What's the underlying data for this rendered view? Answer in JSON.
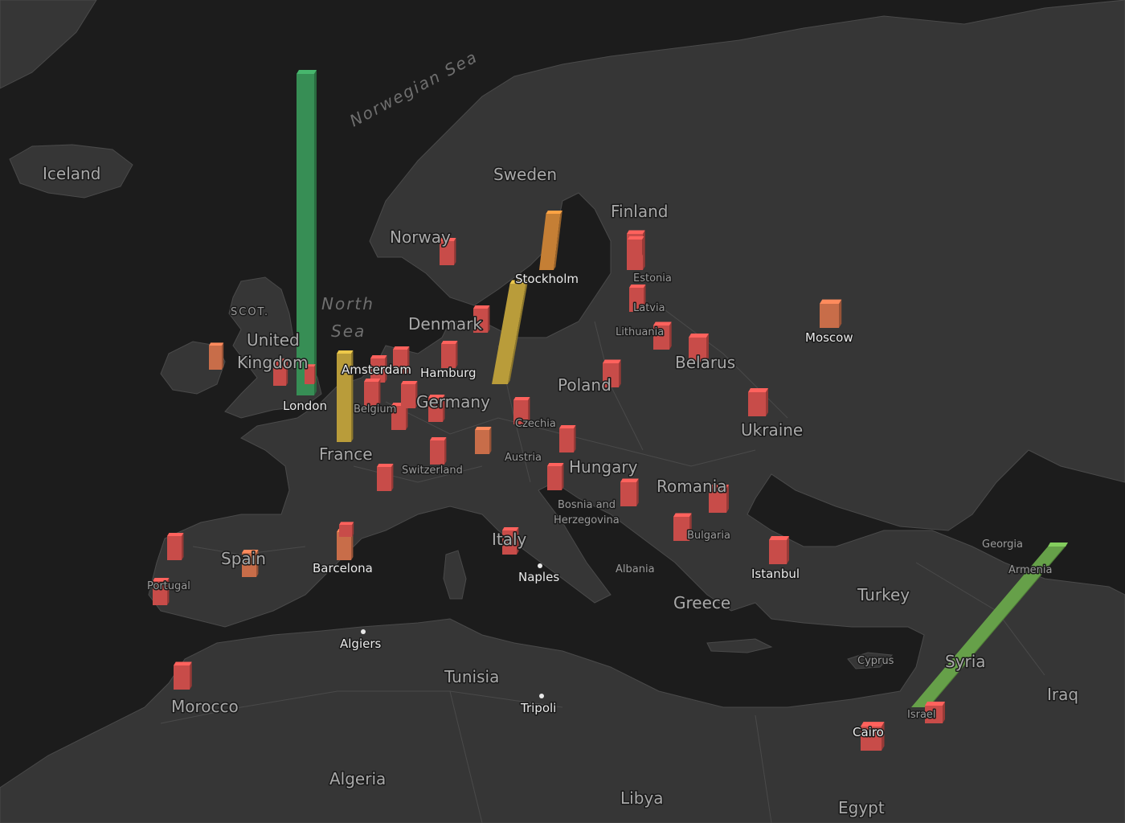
{
  "colors": {
    "water": "#1c1c1c",
    "land": "#363636",
    "land_border": "#4a4a4a",
    "label": "#b9b9b9",
    "bar_red": "#d9534f",
    "bar_orange": "#d9764f",
    "bar_amber": "#d68a3a",
    "bar_yellow": "#c9aa3f",
    "bar_green": "#3c9a5c",
    "bar_lightgreen": "#6fae4f"
  },
  "labels": {
    "countries": [
      {
        "id": "iceland",
        "text": "Iceland"
      },
      {
        "id": "sweden",
        "text": "Sweden"
      },
      {
        "id": "finland",
        "text": "Finland"
      },
      {
        "id": "norway",
        "text": "Norway"
      },
      {
        "id": "denmark",
        "text": "Denmark"
      },
      {
        "id": "uk1",
        "text": "United"
      },
      {
        "id": "uk2",
        "text": "Kingdom"
      },
      {
        "id": "germany",
        "text": "Germany"
      },
      {
        "id": "poland",
        "text": "Poland"
      },
      {
        "id": "belarus",
        "text": "Belarus"
      },
      {
        "id": "ukraine",
        "text": "Ukraine"
      },
      {
        "id": "france",
        "text": "France"
      },
      {
        "id": "hungary",
        "text": "Hungary"
      },
      {
        "id": "romania",
        "text": "Romania"
      },
      {
        "id": "spain",
        "text": "Spain"
      },
      {
        "id": "italy",
        "text": "Italy"
      },
      {
        "id": "greece",
        "text": "Greece"
      },
      {
        "id": "turkey",
        "text": "Turkey"
      },
      {
        "id": "syria",
        "text": "Syria"
      },
      {
        "id": "iraq",
        "text": "Iraq"
      },
      {
        "id": "tunisia",
        "text": "Tunisia"
      },
      {
        "id": "morocco",
        "text": "Morocco"
      },
      {
        "id": "algeria",
        "text": "Algeria"
      },
      {
        "id": "libya",
        "text": "Libya"
      },
      {
        "id": "egypt",
        "text": "Egypt"
      }
    ],
    "small_countries": [
      {
        "id": "estonia",
        "text": "Estonia"
      },
      {
        "id": "latvia",
        "text": "Latvia"
      },
      {
        "id": "lithuania",
        "text": "Lithuania"
      },
      {
        "id": "belgium",
        "text": "Belgium"
      },
      {
        "id": "czechia",
        "text": "Czechia"
      },
      {
        "id": "switzerland",
        "text": "Switzerland"
      },
      {
        "id": "austria",
        "text": "Austria"
      },
      {
        "id": "bosnia1",
        "text": "Bosnia and"
      },
      {
        "id": "bosnia2",
        "text": "Herzegovina"
      },
      {
        "id": "bulgaria",
        "text": "Bulgaria"
      },
      {
        "id": "albania",
        "text": "Albania"
      },
      {
        "id": "portugal",
        "text": "Portugal"
      },
      {
        "id": "georgia",
        "text": "Georgia"
      },
      {
        "id": "armenia",
        "text": "Armenia"
      },
      {
        "id": "cyprus",
        "text": "Cyprus"
      },
      {
        "id": "israel",
        "text": "Israel"
      }
    ],
    "cities": [
      {
        "id": "stockholm",
        "text": "Stockholm"
      },
      {
        "id": "moscow",
        "text": "Moscow"
      },
      {
        "id": "amsterdam",
        "text": "Amsterdam"
      },
      {
        "id": "hamburg",
        "text": "Hamburg"
      },
      {
        "id": "london",
        "text": "London"
      },
      {
        "id": "barcelona",
        "text": "Barcelona"
      },
      {
        "id": "naples",
        "text": "Naples"
      },
      {
        "id": "istanbul",
        "text": "Istanbul"
      },
      {
        "id": "algiers",
        "text": "Algiers"
      },
      {
        "id": "tripoli",
        "text": "Tripoli"
      },
      {
        "id": "cairo",
        "text": "Cairo"
      }
    ],
    "regions": [
      {
        "id": "scot",
        "text": "SCOT."
      }
    ],
    "water": [
      {
        "id": "norwegian_sea",
        "text": "Norwegian Sea"
      },
      {
        "id": "north1",
        "text": "North"
      },
      {
        "id": "north2",
        "text": "Sea"
      }
    ]
  },
  "bars": [
    {
      "id": "london",
      "level": "very-high",
      "color": "bar_green"
    },
    {
      "id": "tel-aviv",
      "level": "very-high",
      "color": "bar_lightgreen"
    },
    {
      "id": "berlin",
      "level": "high",
      "color": "bar_yellow"
    },
    {
      "id": "paris",
      "level": "high",
      "color": "bar_yellow"
    },
    {
      "id": "stockholm",
      "level": "medium",
      "color": "bar_amber"
    },
    {
      "id": "moscow",
      "level": "low",
      "color": "bar_orange"
    },
    {
      "id": "barcelona",
      "level": "low",
      "color": "bar_orange"
    },
    {
      "id": "dublin",
      "level": "low",
      "color": "bar_orange"
    },
    {
      "id": "madrid",
      "level": "low",
      "color": "bar_orange"
    },
    {
      "id": "munich",
      "level": "low",
      "color": "bar_orange"
    },
    {
      "id": "oslo",
      "level": "low",
      "color": "bar_red"
    },
    {
      "id": "copenhagen",
      "level": "low",
      "color": "bar_red"
    },
    {
      "id": "helsinki",
      "level": "low",
      "color": "bar_red"
    },
    {
      "id": "tallinn",
      "level": "low",
      "color": "bar_red"
    },
    {
      "id": "riga",
      "level": "low",
      "color": "bar_red"
    },
    {
      "id": "vilnius",
      "level": "low",
      "color": "bar_red"
    },
    {
      "id": "minsk",
      "level": "low",
      "color": "bar_red"
    },
    {
      "id": "warsaw",
      "level": "low",
      "color": "bar_red"
    },
    {
      "id": "kyiv",
      "level": "low",
      "color": "bar_red"
    },
    {
      "id": "hamburg",
      "level": "low",
      "color": "bar_red"
    },
    {
      "id": "amsterdam",
      "level": "low",
      "color": "bar_red"
    },
    {
      "id": "rotterdam",
      "level": "low",
      "color": "bar_red"
    },
    {
      "id": "brussels",
      "level": "low",
      "color": "bar_red"
    },
    {
      "id": "cologne",
      "level": "low",
      "color": "bar_red"
    },
    {
      "id": "dusseldorf",
      "level": "low",
      "color": "bar_red"
    },
    {
      "id": "frankfurt",
      "level": "low",
      "color": "bar_red"
    },
    {
      "id": "luxembourg",
      "level": "low",
      "color": "bar_red"
    },
    {
      "id": "zurich",
      "level": "low",
      "color": "bar_red"
    },
    {
      "id": "lyon",
      "level": "low",
      "color": "bar_red"
    },
    {
      "id": "prague",
      "level": "low",
      "color": "bar_red"
    },
    {
      "id": "vienna",
      "level": "low",
      "color": "bar_red"
    },
    {
      "id": "budapest",
      "level": "low",
      "color": "bar_red"
    },
    {
      "id": "zagreb",
      "level": "low",
      "color": "bar_red"
    },
    {
      "id": "belgrade",
      "level": "low",
      "color": "bar_red"
    },
    {
      "id": "bucharest",
      "level": "low",
      "color": "bar_red"
    },
    {
      "id": "sofia",
      "level": "low",
      "color": "bar_red"
    },
    {
      "id": "rome",
      "level": "low",
      "color": "bar_red"
    },
    {
      "id": "istanbul",
      "level": "low",
      "color": "bar_red"
    },
    {
      "id": "porto",
      "level": "low",
      "color": "bar_red"
    },
    {
      "id": "lisbon",
      "level": "low",
      "color": "bar_red"
    },
    {
      "id": "casablanca",
      "level": "low",
      "color": "bar_red"
    },
    {
      "id": "cairo",
      "level": "low",
      "color": "bar_red"
    },
    {
      "id": "jerusalem",
      "level": "low",
      "color": "bar_red"
    },
    {
      "id": "manchester",
      "level": "low",
      "color": "bar_red"
    }
  ]
}
